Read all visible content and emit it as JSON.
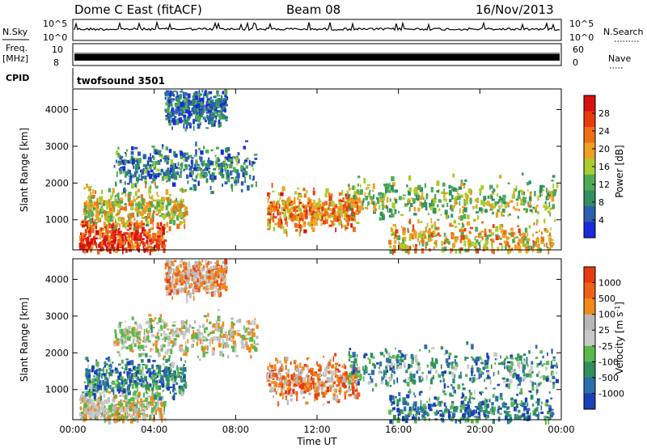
{
  "header": {
    "station": "Dome C East (fitACF)",
    "beam": "Beam 08",
    "date": "16/Nov/2013"
  },
  "panels": {
    "nsky_label": "N.Sky",
    "nsky_ticks": [
      "10^5",
      "10^0"
    ],
    "nsearch_label": "N.Search",
    "freq_label": "Freq.",
    "freq_unit": "[MHz]",
    "freq_ticks": [
      "10",
      "8"
    ],
    "nave_label": "Nave",
    "nave_ticks": [
      "60",
      "0"
    ],
    "cpid_label": "CPID",
    "cpid_value": "twofsound 3501"
  },
  "chart_data": [
    {
      "type": "heatmap",
      "name": "power",
      "ylabel": "Slant Range [km]",
      "xlabel": "",
      "x_ticks": [
        "00:00",
        "04:00",
        "08:00",
        "12:00",
        "16:00",
        "20:00",
        "00:00"
      ],
      "xlim_hours": [
        0,
        24
      ],
      "y_ticks": [
        1000,
        2000,
        3000,
        4000
      ],
      "ylim": [
        180,
        4560
      ],
      "colorbar": {
        "label": "Power [dB]",
        "ticks": [
          "28",
          "24",
          "20",
          "16",
          "12",
          "8",
          "4"
        ],
        "colors": [
          "#1a2bd8",
          "#2b5fb0",
          "#2f8f63",
          "#4faa55",
          "#a9cc2e",
          "#f0a020",
          "#f07018",
          "#e83a10",
          "#d81010"
        ]
      },
      "features": [
        {
          "t_start": 0.3,
          "t_end": 4.5,
          "r_center": 500,
          "level": 0.85
        },
        {
          "t_start": 0.5,
          "t_end": 5.5,
          "r_center": 1350,
          "level": 0.55
        },
        {
          "t_start": 9.5,
          "t_end": 14.0,
          "r_center": 1300,
          "level": 0.7
        },
        {
          "t_start": 13.5,
          "t_end": 23.8,
          "r_center": 1600,
          "level": 0.45
        },
        {
          "t_start": 15.5,
          "t_end": 23.5,
          "r_center": 450,
          "level": 0.6
        },
        {
          "t_start": 2.0,
          "t_end": 9.0,
          "r_center": 2500,
          "level": 0.25
        },
        {
          "t_start": 4.5,
          "t_end": 7.5,
          "r_center": 4100,
          "level": 0.2
        }
      ]
    },
    {
      "type": "heatmap",
      "name": "velocity",
      "ylabel": "Slant Range [km]",
      "xlabel": "Time UT",
      "x_ticks": [
        "00:00",
        "04:00",
        "08:00",
        "12:00",
        "16:00",
        "20:00",
        "00:00"
      ],
      "xlim_hours": [
        0,
        24
      ],
      "y_ticks": [
        1000,
        2000,
        3000,
        4000
      ],
      "ylim": [
        180,
        4560
      ],
      "colorbar": {
        "label": "Velocity [m s",
        "label_sup": "-1",
        "label_close": "]",
        "ticks": [
          "1000",
          "500",
          "100",
          "25",
          "-25",
          "-100",
          "-500",
          "-1000"
        ],
        "colors": [
          "#1a3fb8",
          "#2b6fa8",
          "#2f8f63",
          "#5ab84a",
          "#c8c8c8",
          "#b8b8b8",
          "#f08a1a",
          "#f06018",
          "#e83a10"
        ]
      },
      "features": [
        {
          "t_start": 0.3,
          "t_end": 4.5,
          "r_center": 500,
          "level": 0.55
        },
        {
          "t_start": 0.5,
          "t_end": 5.5,
          "r_center": 1350,
          "level": 0.25
        },
        {
          "t_start": 9.5,
          "t_end": 14.0,
          "r_center": 1300,
          "level": 0.75
        },
        {
          "t_start": 13.5,
          "t_end": 23.8,
          "r_center": 1600,
          "level": 0.3
        },
        {
          "t_start": 15.5,
          "t_end": 23.5,
          "r_center": 450,
          "level": 0.2
        },
        {
          "t_start": 2.0,
          "t_end": 9.0,
          "r_center": 2500,
          "level": 0.55
        },
        {
          "t_start": 4.5,
          "t_end": 7.5,
          "r_center": 4100,
          "level": 0.7
        }
      ]
    }
  ]
}
